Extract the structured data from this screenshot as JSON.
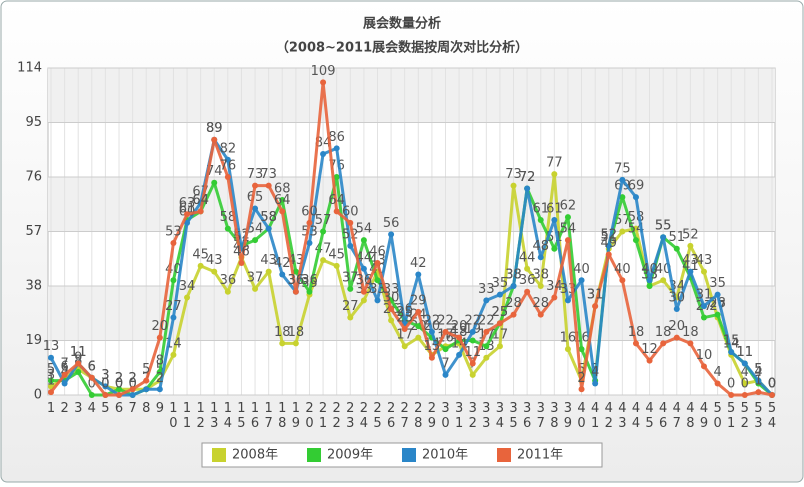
{
  "chart_data": {
    "type": "line",
    "title": "展会数量分析",
    "subtitle": "（2008~2011展会数据按周次对比分析）",
    "categories": [
      "1",
      "2",
      "3",
      "4",
      "5",
      "6",
      "7",
      "8",
      "9",
      "10",
      "11",
      "12",
      "13",
      "14",
      "15",
      "16",
      "17",
      "18",
      "19",
      "20",
      "21",
      "22",
      "23",
      "24",
      "25",
      "26",
      "27",
      "28",
      "29",
      "30",
      "31",
      "32",
      "33",
      "34",
      "35",
      "36",
      "37",
      "38",
      "39",
      "40",
      "41",
      "42",
      "43",
      "44",
      "45",
      "46",
      "47",
      "48",
      "49",
      "50",
      "51",
      "52",
      "53",
      "54"
    ],
    "ylim": [
      0,
      114
    ],
    "yticks": [
      0,
      19,
      38,
      57,
      76,
      95,
      114
    ],
    "grid": true,
    "legend": "bottom",
    "series": [
      {
        "name": "2008年",
        "color": "#c8d22f",
        "values": [
          3,
          6,
          9,
          6,
          3,
          2,
          2,
          2,
          5,
          14,
          34,
          45,
          43,
          36,
          48,
          37,
          43,
          18,
          18,
          35,
          47,
          45,
          27,
          33,
          43,
          26,
          17,
          20,
          14,
          17,
          18,
          7,
          13,
          17,
          73,
          44,
          38,
          77,
          16,
          5,
          31,
          51,
          57,
          58,
          38,
          40,
          34,
          52,
          43,
          27,
          14,
          4,
          5,
          0
        ]
      },
      {
        "name": "2009年",
        "color": "#33cc33",
        "values": [
          5,
          5,
          8,
          0,
          0,
          2,
          0,
          2,
          8,
          40,
          61,
          64,
          74,
          58,
          52,
          54,
          58,
          68,
          43,
          36,
          57,
          76,
          37,
          54,
          40,
          33,
          26,
          24,
          20,
          16,
          19,
          19,
          17,
          25,
          38,
          72,
          61,
          51,
          62,
          16,
          5,
          52,
          69,
          54,
          38,
          55,
          51,
          41,
          27,
          28,
          15,
          11,
          4,
          0
        ]
      },
      {
        "name": "2010年",
        "color": "#2a86c8",
        "values": [
          13,
          4,
          11,
          6,
          3,
          0,
          0,
          2,
          2,
          27,
          60,
          67,
          89,
          82,
          51,
          65,
          58,
          42,
          36,
          53,
          84,
          86,
          52,
          44,
          33,
          56,
          25,
          42,
          22,
          7,
          14,
          22,
          33,
          35,
          38,
          72,
          48,
          61,
          33,
          40,
          4,
          52,
          75,
          69,
          40,
          55,
          30,
          43,
          31,
          35,
          15,
          11,
          5,
          0
        ]
      },
      {
        "name": "2011年",
        "color": "#e8643c",
        "values": [
          1,
          7,
          11,
          6,
          0,
          0,
          2,
          5,
          20,
          53,
          63,
          64,
          89,
          76,
          46,
          73,
          73,
          64,
          36,
          60,
          109,
          64,
          60,
          36,
          46,
          30,
          23,
          29,
          13,
          22,
          20,
          11,
          22,
          25,
          28,
          36,
          28,
          34,
          54,
          2,
          31,
          49,
          40,
          18,
          12,
          18,
          20,
          18,
          10,
          4,
          0,
          0,
          1,
          0
        ]
      }
    ]
  }
}
